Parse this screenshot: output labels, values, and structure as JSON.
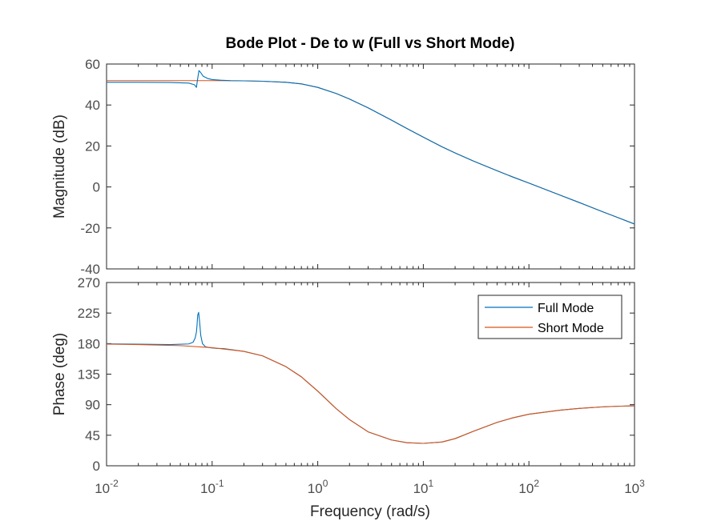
{
  "chart_data": {
    "type": "line",
    "title": "Bode Plot - De to w (Full vs Short Mode)",
    "xlabel": "Frequency  (rad/s)",
    "x_scale": "log",
    "xlim": [
      0.01,
      1000
    ],
    "x_ticks": [
      {
        "value": 0.01,
        "base": "10",
        "exp": "-2"
      },
      {
        "value": 0.1,
        "base": "10",
        "exp": "-1"
      },
      {
        "value": 1,
        "base": "10",
        "exp": "0"
      },
      {
        "value": 10,
        "base": "10",
        "exp": "1"
      },
      {
        "value": 100,
        "base": "10",
        "exp": "2"
      },
      {
        "value": 1000,
        "base": "10",
        "exp": "3"
      }
    ],
    "grid": false,
    "legend": {
      "location": "top-right",
      "entries": [
        "Full Mode",
        "Short Mode"
      ]
    },
    "colors": {
      "full": "#0072BD",
      "short": "#D95319",
      "axes": "#262626"
    },
    "panels": [
      {
        "id": "magnitude",
        "ylabel": "Magnitude (dB)",
        "ylim": [
          -40,
          60
        ],
        "y_ticks": [
          -40,
          -20,
          0,
          20,
          40,
          60
        ],
        "series": [
          {
            "name": "Short Mode",
            "color": "#D95319",
            "x": [
              0.01,
              0.02,
              0.05,
              0.1,
              0.2,
              0.3,
              0.5,
              0.7,
              1,
              1.5,
              2,
              3,
              5,
              7,
              10,
              15,
              20,
              30,
              50,
              70,
              100,
              200,
              300,
              500,
              700,
              1000
            ],
            "y": [
              51.9,
              51.9,
              51.9,
              51.9,
              51.8,
              51.6,
              51.1,
              50.3,
              48.6,
              45.6,
              42.9,
              38.6,
              32.6,
              28.5,
              24.3,
              19.6,
              16.6,
              12.6,
              7.9,
              4.9,
              1.9,
              -4.1,
              -7.6,
              -12.1,
              -15.0,
              -18.1
            ]
          },
          {
            "name": "Full Mode",
            "color": "#0072BD",
            "x": [
              0.01,
              0.02,
              0.04,
              0.06,
              0.068,
              0.071,
              0.073,
              0.075,
              0.078,
              0.082,
              0.09,
              0.1,
              0.12,
              0.15,
              0.2,
              0.3,
              0.5,
              0.7,
              1,
              1.5,
              2,
              3,
              5,
              7,
              10,
              15,
              20,
              30,
              50,
              70,
              100,
              200,
              300,
              500,
              700,
              1000
            ],
            "y": [
              51.1,
              51.1,
              51.0,
              50.7,
              49.9,
              48.6,
              53.0,
              56.8,
              55.8,
              54.1,
              53.0,
              52.4,
              52.1,
              51.9,
              51.8,
              51.6,
              51.1,
              50.3,
              48.6,
              45.6,
              42.9,
              38.6,
              32.6,
              28.5,
              24.3,
              19.6,
              16.6,
              12.6,
              7.9,
              4.9,
              1.9,
              -4.1,
              -7.6,
              -12.1,
              -15.0,
              -18.1
            ]
          }
        ]
      },
      {
        "id": "phase",
        "ylabel": "Phase (deg)",
        "ylim": [
          0,
          270
        ],
        "y_ticks": [
          0,
          45,
          90,
          135,
          180,
          225,
          270
        ],
        "series": [
          {
            "name": "Full Mode",
            "color": "#0072BD",
            "x": [
              0.01,
              0.02,
              0.04,
              0.06,
              0.066,
              0.069,
              0.071,
              0.072,
              0.073,
              0.0745,
              0.076,
              0.078,
              0.081,
              0.086,
              0.095,
              0.11,
              0.13,
              0.2,
              0.3,
              0.5,
              0.7,
              1,
              1.5,
              2,
              3,
              5,
              7,
              10,
              15,
              20,
              30,
              50,
              70,
              100,
              200,
              300,
              500,
              700,
              1000
            ],
            "y": [
              179.6,
              179.2,
              178.6,
              179.5,
              182,
              188,
              197,
              208,
              222,
              226,
              213,
              192,
              180,
              175.5,
              174,
              173,
              172.6,
              168.5,
              162,
              146,
              131,
              110,
              84,
              68,
              50,
              38,
              34,
              33,
              35,
              40,
              51,
              64,
              70.5,
              76,
              82,
              84.5,
              86.8,
              87.7,
              88.4
            ]
          },
          {
            "name": "Short Mode",
            "color": "#D95319",
            "x": [
              0.01,
              0.02,
              0.05,
              0.1,
              0.2,
              0.3,
              0.5,
              0.7,
              1,
              1.5,
              2,
              3,
              5,
              7,
              10,
              15,
              20,
              30,
              50,
              70,
              100,
              200,
              300,
              500,
              700,
              1000
            ],
            "y": [
              179.2,
              178.5,
              177,
              174,
              168.5,
              162,
              146,
              131,
              110,
              84,
              68,
              50,
              38,
              34,
              33,
              35,
              40,
              51,
              64,
              70.5,
              76,
              82,
              84.5,
              86.8,
              87.7,
              88.4
            ]
          }
        ]
      }
    ]
  }
}
